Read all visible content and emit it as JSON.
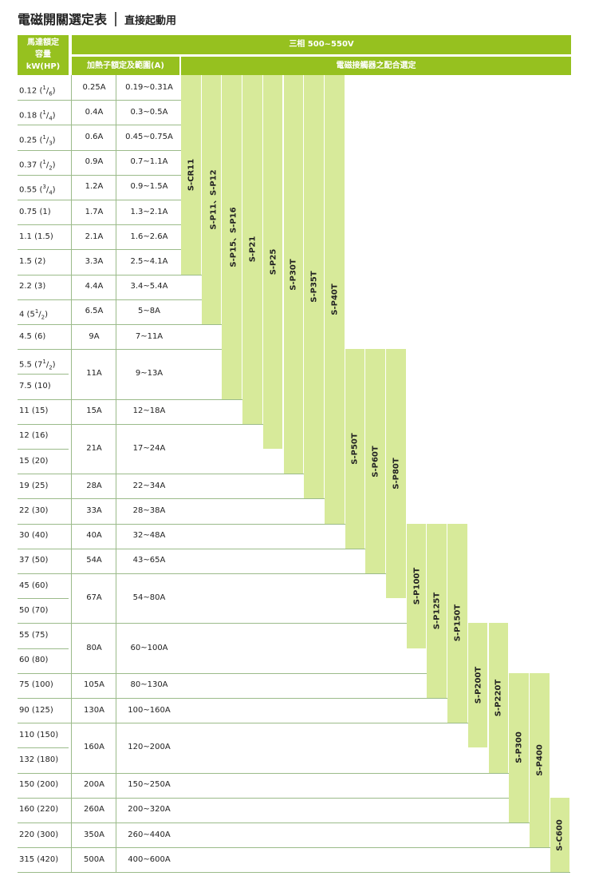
{
  "title": {
    "main": "電磁開關選定表",
    "sub": "直接起動用"
  },
  "header": {
    "motor": "馬達額定容量kW(HP)",
    "motor_line1": "馬達額定",
    "motor_line2": "容量",
    "motor_line3": "kW(HP)",
    "phase": "三相 500~550V",
    "heater": "加熱子額定及範圍(A)",
    "contactor": "電磁接觸器之配合選定"
  },
  "rows": [
    {
      "kw": "0.12 (1/6)",
      "rating": "0.25A",
      "range": "0.19~0.31A"
    },
    {
      "kw": "0.18 (1/4)",
      "rating": "0.4A",
      "range": "0.3~0.5A"
    },
    {
      "kw": "0.25 (1/3)",
      "rating": "0.6A",
      "range": "0.45~0.75A"
    },
    {
      "kw": "0.37 (1/2)",
      "rating": "0.9A",
      "range": "0.7~1.1A"
    },
    {
      "kw": "0.55 (3/4)",
      "rating": "1.2A",
      "range": "0.9~1.5A"
    },
    {
      "kw": "0.75 (1)",
      "rating": "1.7A",
      "range": "1.3~2.1A"
    },
    {
      "kw": "1.1 (1.5)",
      "rating": "2.1A",
      "range": "1.6~2.6A"
    },
    {
      "kw": "1.5 (2)",
      "rating": "3.3A",
      "range": "2.5~4.1A"
    },
    {
      "kw": "2.2 (3)",
      "rating": "4.4A",
      "range": "3.4~5.4A"
    },
    {
      "kw": "4 (51/2)",
      "rating": "6.5A",
      "range": "5~8A"
    },
    {
      "kw": "4.5 (6)",
      "rating": "9A",
      "range": "7~11A"
    },
    {
      "kw": "5.5 (71/2)",
      "rating": "11A",
      "range": "9~13A"
    },
    {
      "kw": "7.5 (10)",
      "rating": "",
      "range": ""
    },
    {
      "kw": "11 (15)",
      "rating": "15A",
      "range": "12~18A"
    },
    {
      "kw": "12 (16)",
      "rating": "21A",
      "range": "17~24A"
    },
    {
      "kw": "15 (20)",
      "rating": "",
      "range": ""
    },
    {
      "kw": "19 (25)",
      "rating": "28A",
      "range": "22~34A"
    },
    {
      "kw": "22 (30)",
      "rating": "33A",
      "range": "28~38A"
    },
    {
      "kw": "30 (40)",
      "rating": "40A",
      "range": "32~48A"
    },
    {
      "kw": "37 (50)",
      "rating": "54A",
      "range": "43~65A"
    },
    {
      "kw": "45 (60)",
      "rating": "67A",
      "range": "54~80A"
    },
    {
      "kw": "50 (70)",
      "rating": "",
      "range": ""
    },
    {
      "kw": "55 (75)",
      "rating": "80A",
      "range": "60~100A"
    },
    {
      "kw": "60 (80)",
      "rating": "",
      "range": ""
    },
    {
      "kw": "75 (100)",
      "rating": "105A",
      "range": "80~130A"
    },
    {
      "kw": "90 (125)",
      "rating": "130A",
      "range": "100~160A"
    },
    {
      "kw": "110 (150)",
      "rating": "160A",
      "range": "120~200A"
    },
    {
      "kw": "132 (180)",
      "rating": "",
      "range": ""
    },
    {
      "kw": "150 (200)",
      "rating": "200A",
      "range": "150~250A"
    },
    {
      "kw": "160 (220)",
      "rating": "260A",
      "range": "200~320A"
    },
    {
      "kw": "220 (300)",
      "rating": "350A",
      "range": "260~440A"
    },
    {
      "kw": "315 (420)",
      "rating": "500A",
      "range": "400~600A"
    }
  ],
  "contactors": [
    {
      "label": "S-CR11",
      "from_row": 0,
      "to_row": 7
    },
    {
      "label": "S-P11、S-P12",
      "from_row": 0,
      "to_row": 9
    },
    {
      "label": "S-P15、S-P16",
      "from_row": 0,
      "to_row": 12
    },
    {
      "label": "S-P21",
      "from_row": 0,
      "to_row": 13
    },
    {
      "label": "S-P25",
      "from_row": 0,
      "to_row": 14
    },
    {
      "label": "S-P30T",
      "from_row": 0,
      "to_row": 15
    },
    {
      "label": "S-P35T",
      "from_row": 0,
      "to_row": 16
    },
    {
      "label": "S-P40T",
      "from_row": 0,
      "to_row": 17
    },
    {
      "label": "S-P50T",
      "from_row": 11,
      "to_row": 18
    },
    {
      "label": "S-P60T",
      "from_row": 11,
      "to_row": 19
    },
    {
      "label": "S-P80T",
      "from_row": 11,
      "to_row": 20
    },
    {
      "label": "S-P100T",
      "from_row": 18,
      "to_row": 22
    },
    {
      "label": "S-P125T",
      "from_row": 18,
      "to_row": 24
    },
    {
      "label": "S-P150T",
      "from_row": 18,
      "to_row": 25
    },
    {
      "label": "S-P200T",
      "from_row": 22,
      "to_row": 26
    },
    {
      "label": "S-P220T",
      "from_row": 22,
      "to_row": 27
    },
    {
      "label": "S-P300",
      "from_row": 24,
      "to_row": 29
    },
    {
      "label": "S-P400",
      "from_row": 24,
      "to_row": 30
    },
    {
      "label": "S-C600",
      "from_row": 29,
      "to_row": 31
    }
  ],
  "colors": {
    "header": "#96c11f",
    "bar": "#d7ea9a",
    "rule": "#9bbb8a"
  }
}
